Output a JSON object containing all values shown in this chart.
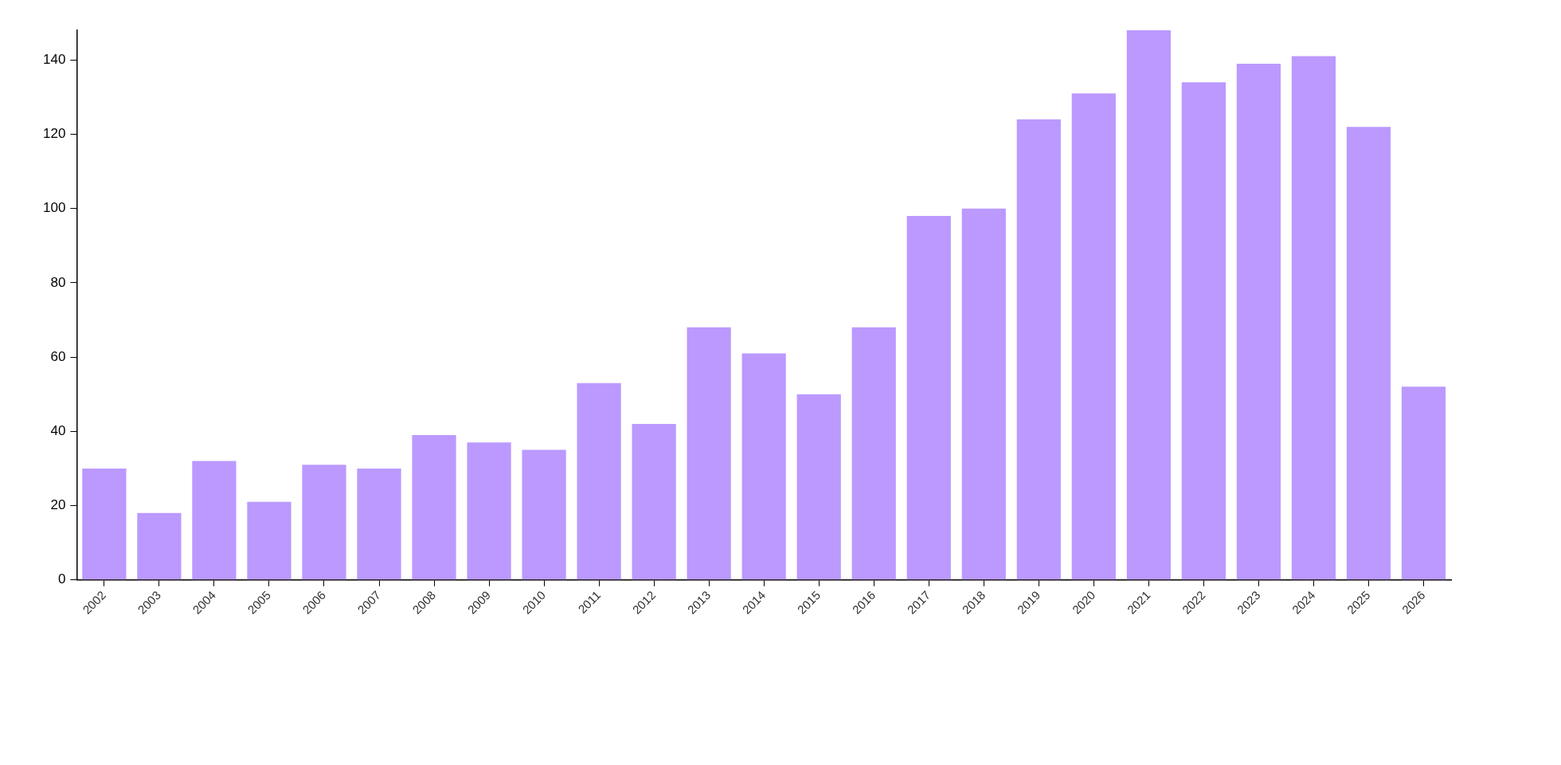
{
  "chart_data": {
    "type": "bar",
    "categories": [
      "2002",
      "2003",
      "2004",
      "2005",
      "2006",
      "2007",
      "2008",
      "2009",
      "2010",
      "2011",
      "2012",
      "2013",
      "2014",
      "2015",
      "2016",
      "2017",
      "2018",
      "2019",
      "2020",
      "2021",
      "2022",
      "2023",
      "2024",
      "2025",
      "2026"
    ],
    "values": [
      30,
      18,
      32,
      21,
      31,
      30,
      39,
      37,
      35,
      53,
      42,
      68,
      61,
      50,
      68,
      98,
      100,
      124,
      131,
      148,
      134,
      139,
      141,
      122,
      52
    ],
    "color": "#bb99ff",
    "ylim": [
      0,
      148
    ],
    "yticks": [
      0,
      20,
      40,
      60,
      80,
      100,
      120,
      140
    ],
    "grid": false,
    "legend": false
  }
}
